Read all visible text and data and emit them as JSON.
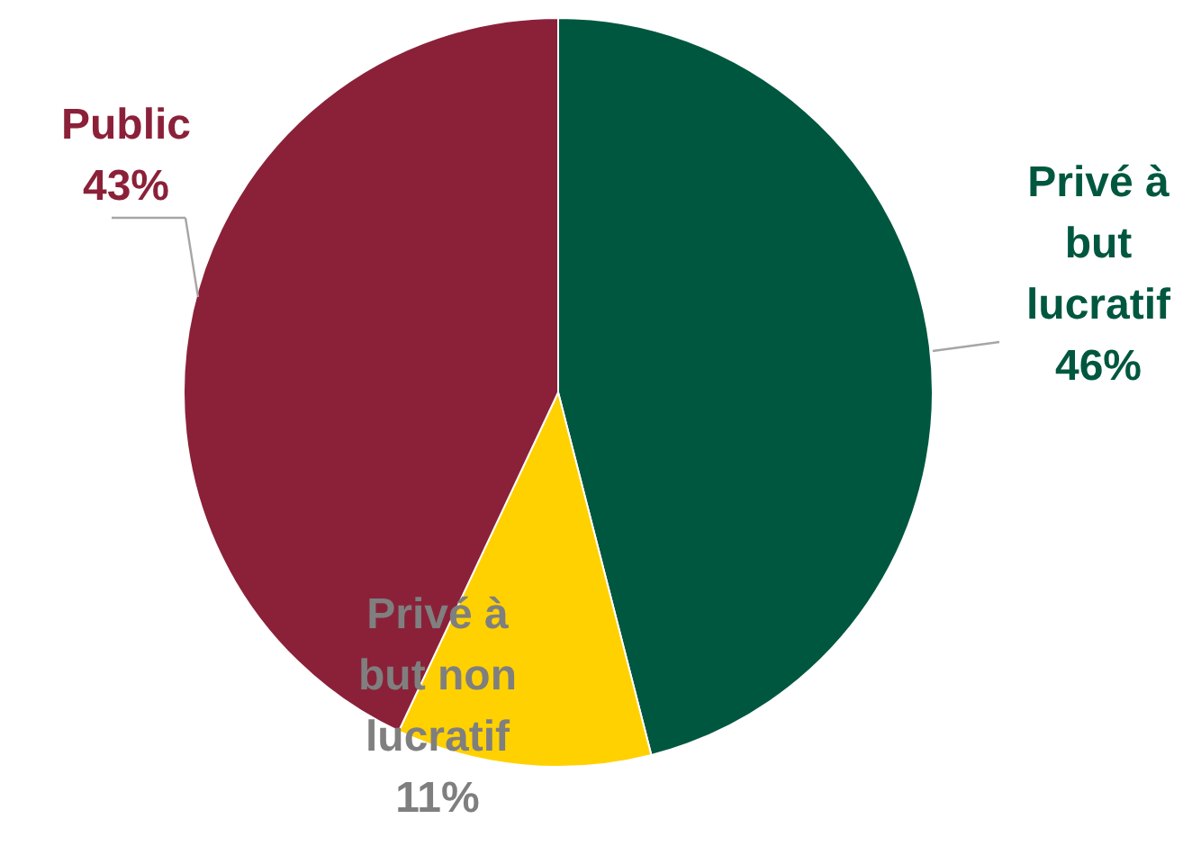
{
  "chart_data": {
    "type": "pie",
    "categories": [
      "Privé à\nbut\nlucratif",
      "Privé à\nbut non\nlucratif",
      "Public"
    ],
    "values": [
      46,
      11,
      43
    ],
    "colors": [
      "#00573f",
      "#ffd100",
      "#8b2139"
    ],
    "value_labels": [
      "46%",
      "11%",
      "43%"
    ]
  }
}
